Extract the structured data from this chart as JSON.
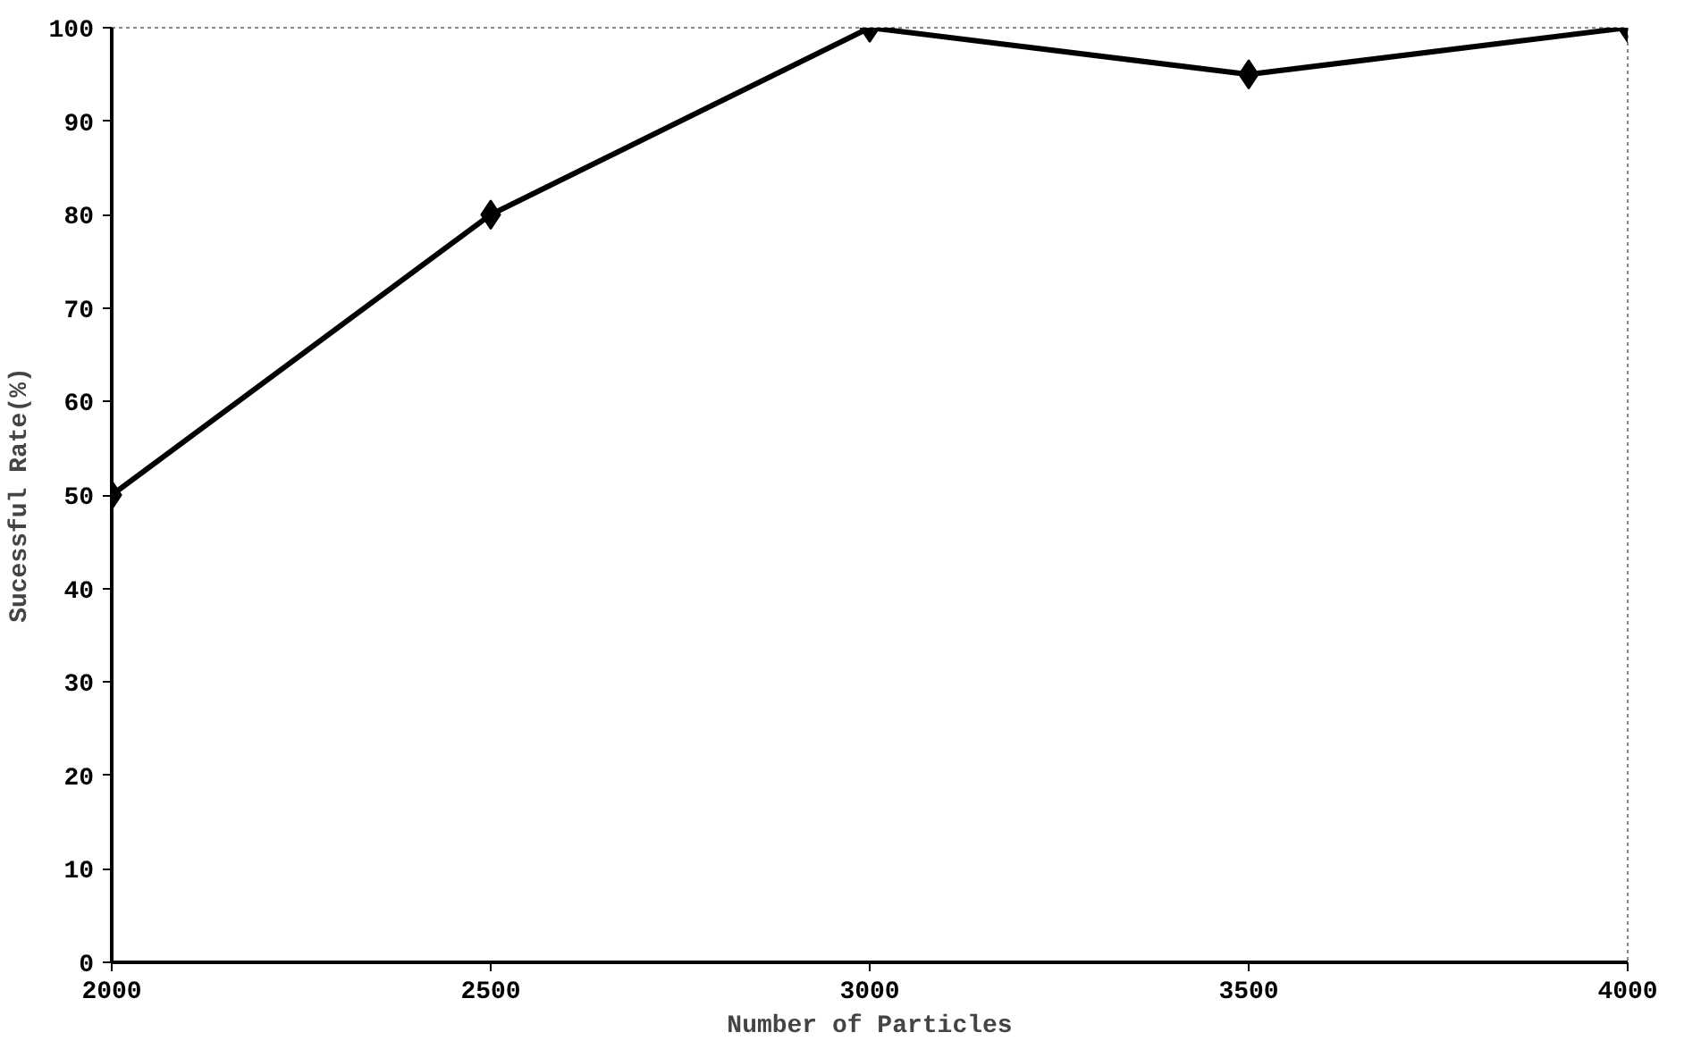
{
  "chart_data": {
    "type": "line",
    "xlabel": "Number of Particles",
    "ylabel": "Sucessful Rate(%)",
    "x": [
      2000,
      2500,
      3000,
      3500,
      4000
    ],
    "series": [
      {
        "color": "#000000",
        "values": [
          50,
          80,
          100,
          95,
          100
        ]
      }
    ],
    "xlim": [
      2000,
      4000
    ],
    "xticks": [
      2000,
      2500,
      3000,
      3500,
      4000
    ],
    "ylim": [
      0,
      100
    ],
    "yticks": [
      0,
      10,
      20,
      30,
      40,
      50,
      60,
      70,
      80,
      90,
      100
    ],
    "grid": false,
    "marker": "diamond",
    "line_style": "solid"
  }
}
